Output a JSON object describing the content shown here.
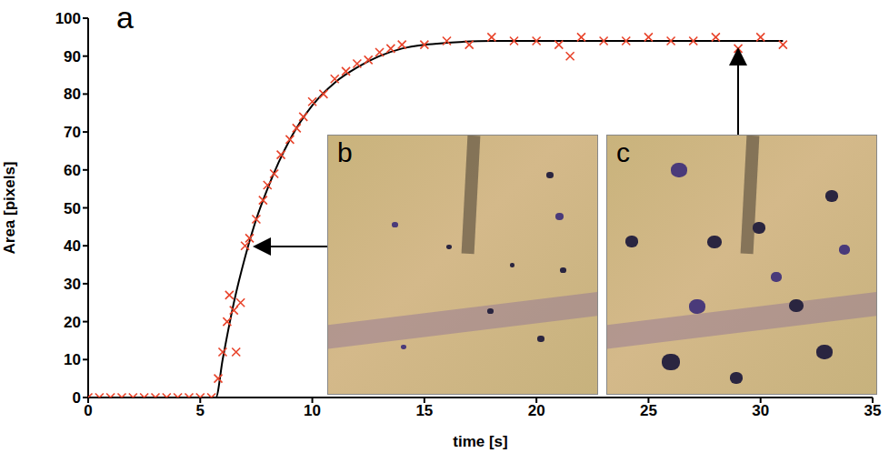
{
  "chart_data": {
    "type": "scatter",
    "x_label": "time [s]",
    "y_label": "Area [pixels]",
    "annotations": [
      "a",
      "b",
      "c"
    ],
    "xlim": [
      0,
      35
    ],
    "xticks": [
      0,
      5,
      10,
      15,
      20,
      25,
      30,
      35
    ],
    "ylim": [
      0,
      100
    ],
    "yticks": [
      0,
      10,
      20,
      30,
      40,
      50,
      60,
      70,
      80,
      90,
      100
    ],
    "series": [
      {
        "type": "scatter",
        "color": "#e8432a",
        "marker": "x",
        "x": [
          0,
          0.5,
          1,
          1.5,
          2,
          2.5,
          3,
          3.5,
          4,
          4.5,
          5,
          5.5,
          5.8,
          6,
          6.2,
          6.3,
          6.5,
          6.6,
          6.8,
          7,
          7.2,
          7.5,
          7.8,
          8,
          8.3,
          8.6,
          9,
          9.3,
          9.6,
          10,
          10.5,
          11,
          11.5,
          12,
          12.5,
          13,
          13.5,
          14,
          15,
          16,
          17,
          18,
          19,
          20,
          21,
          21.5,
          22,
          23,
          24,
          25,
          26,
          27,
          28,
          29,
          30,
          31
        ],
        "values": [
          0,
          0,
          0,
          0,
          0,
          0,
          0,
          0,
          0,
          0,
          0,
          0,
          5,
          12,
          20,
          27,
          23,
          12,
          25,
          40,
          42,
          47,
          52,
          56,
          59,
          64,
          68,
          71,
          74,
          78,
          80,
          84,
          86,
          88,
          89,
          91,
          92,
          93,
          93,
          94,
          93,
          95,
          94,
          94,
          93,
          90,
          95,
          94,
          94,
          95,
          94,
          94,
          95,
          92,
          95,
          93
        ]
      },
      {
        "type": "line",
        "color": "#000000",
        "line_style": "solid",
        "x": [
          0,
          5.7,
          6,
          6.5,
          7,
          7.5,
          8,
          8.5,
          9,
          10,
          11,
          12,
          13,
          14,
          15,
          16,
          18,
          20,
          25,
          31
        ],
        "values": [
          0,
          0,
          10,
          25,
          37,
          47,
          55,
          62,
          68,
          77,
          83,
          87,
          90,
          92,
          93,
          93.5,
          94,
          94,
          94,
          94
        ]
      }
    ]
  }
}
